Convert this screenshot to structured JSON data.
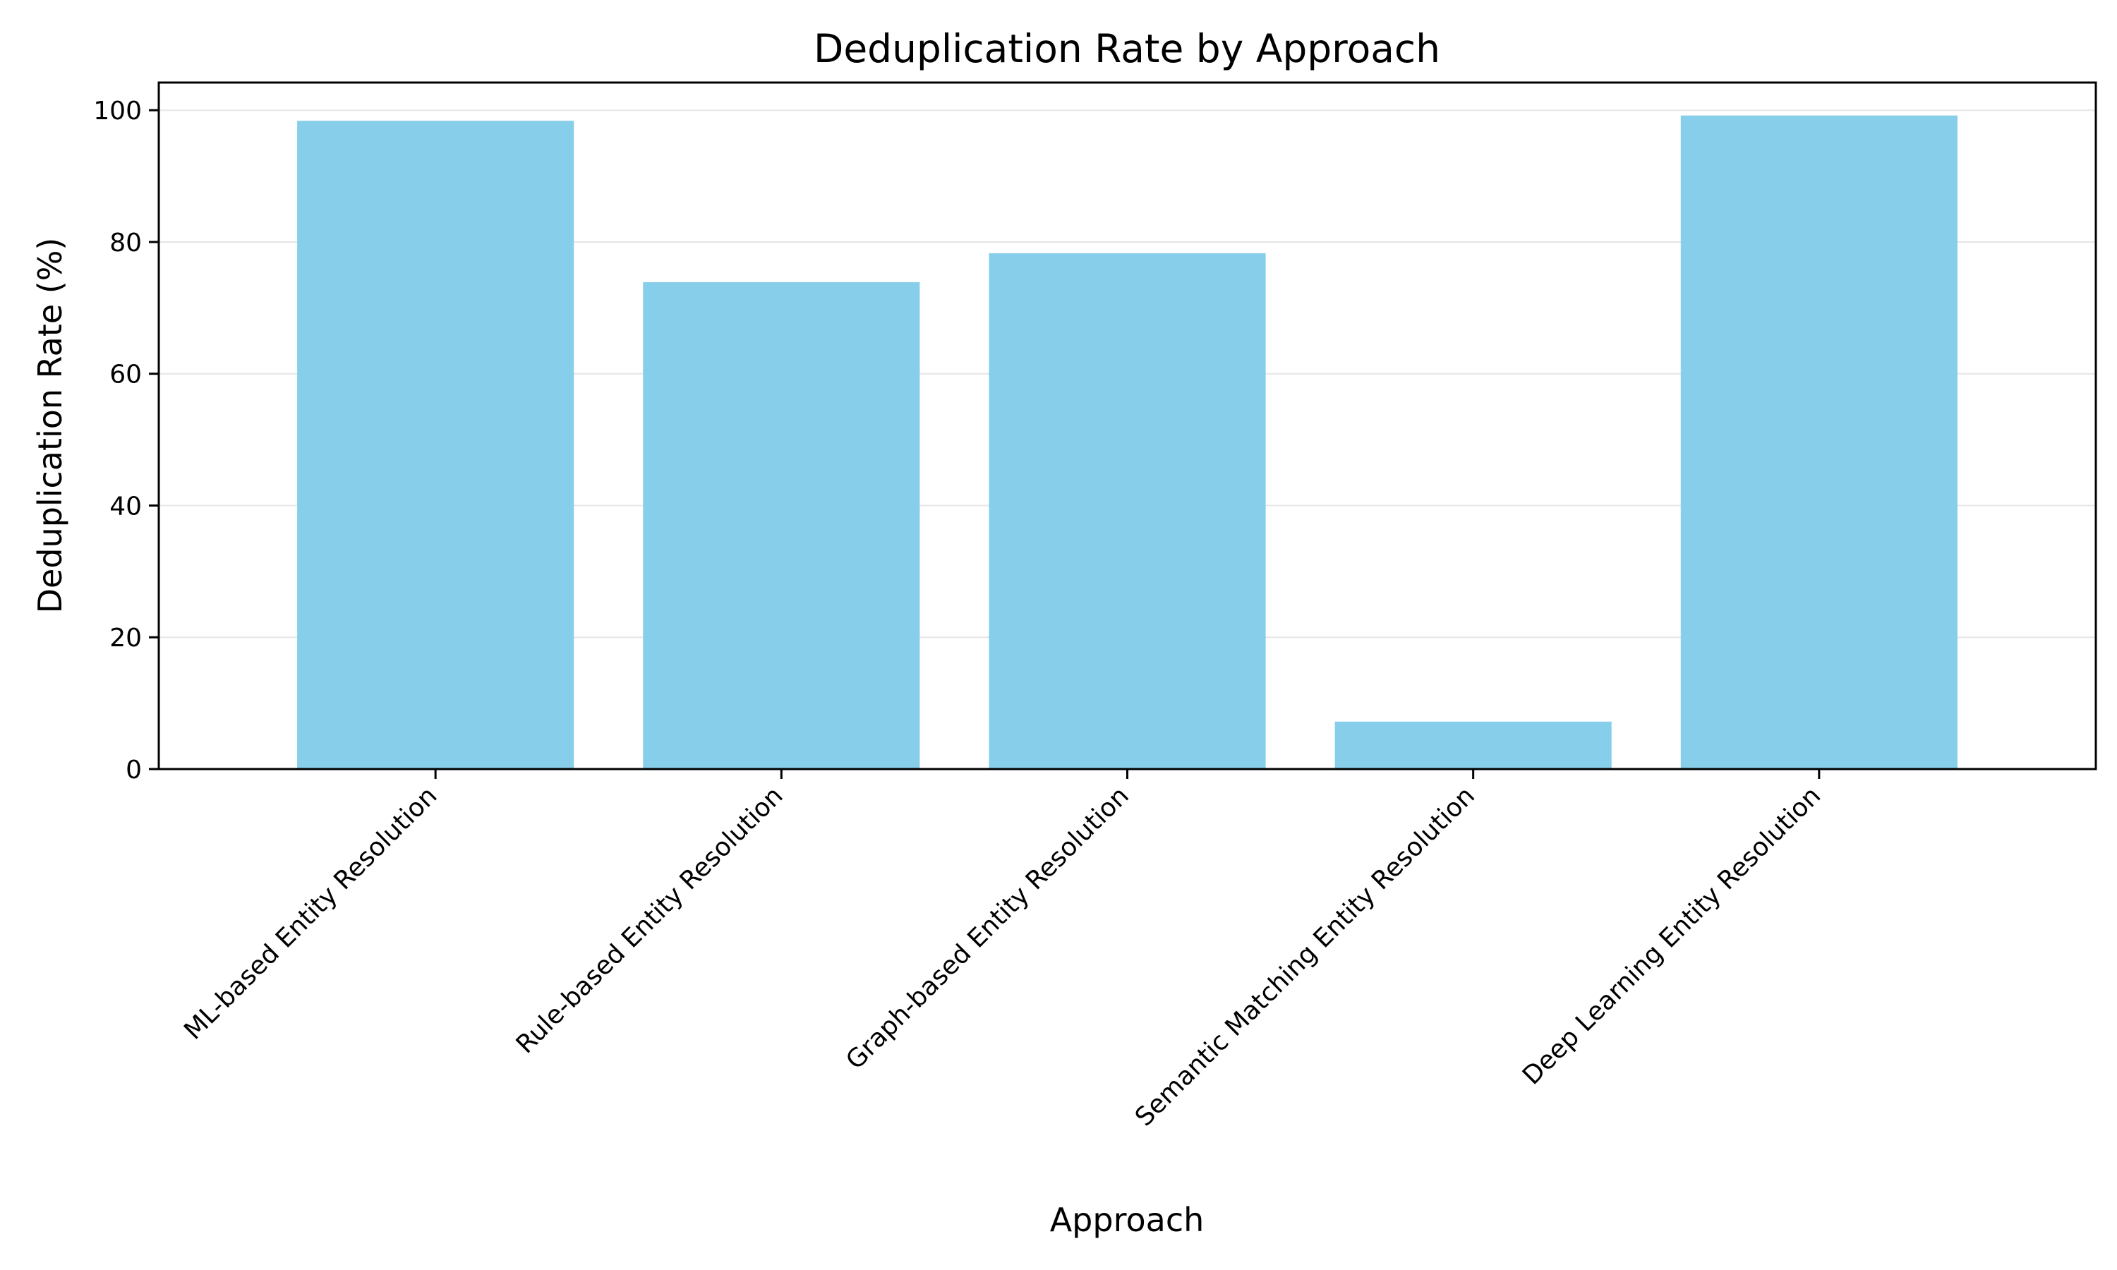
{
  "chart_data": {
    "type": "bar",
    "title": "Deduplication Rate by Approach",
    "xlabel": "Approach",
    "ylabel": "Deduplication Rate (%)",
    "categories": [
      "ML-based Entity Resolution",
      "Rule-based Entity Resolution",
      "Graph-based Entity Resolution",
      "Semantic Matching Entity Resolution",
      "Deep Learning Entity Resolution"
    ],
    "values": [
      98.4,
      73.9,
      78.3,
      7.2,
      99.2
    ],
    "ylim": [
      0,
      104.2
    ],
    "yticks": [
      0,
      20,
      40,
      60,
      80,
      100
    ],
    "grid": "y-axis, light gray",
    "legend": "none",
    "bar_color": "#87ceeb"
  }
}
